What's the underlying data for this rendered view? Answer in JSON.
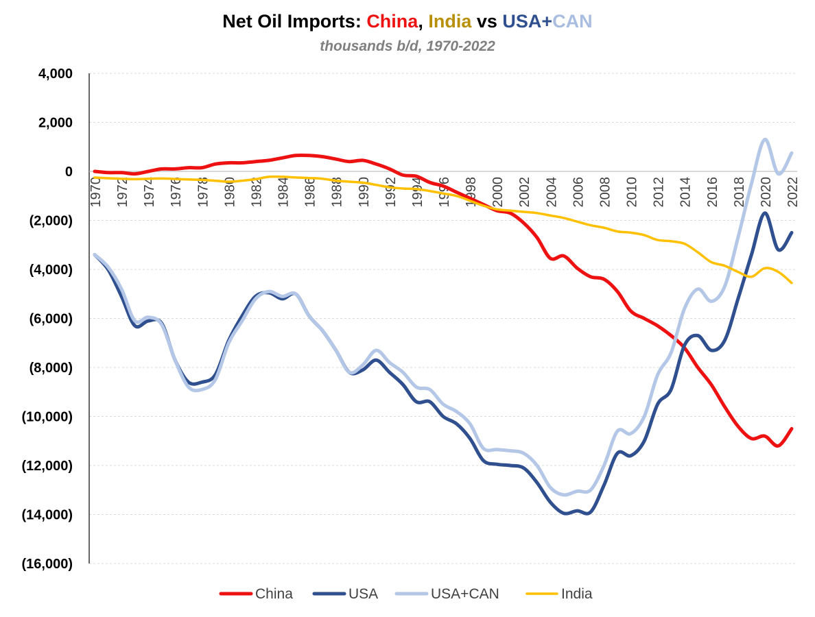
{
  "title_parts": [
    {
      "text": "Net Oil Imports: ",
      "color": "#000000"
    },
    {
      "text": "China",
      "color": "#ee1111"
    },
    {
      "text": ", ",
      "color": "#000000"
    },
    {
      "text": "India",
      "color": "#b8900a"
    },
    {
      "text": " vs ",
      "color": "#000000"
    },
    {
      "text": "USA+",
      "color": "#2f4f8f"
    },
    {
      "text": "CAN",
      "color": "#a9bde0"
    }
  ],
  "subtitle": "thousands b/d, 1970-2022",
  "chart_data": {
    "type": "line",
    "title": "Net Oil Imports: China, India vs USA+CAN",
    "subtitle": "thousands b/d, 1970-2022",
    "xlabel": "",
    "ylabel": "",
    "ylim": [
      -16000,
      4000
    ],
    "y_ticks": [
      4000,
      2000,
      0,
      -2000,
      -4000,
      -6000,
      -8000,
      -10000,
      -12000,
      -14000,
      -16000
    ],
    "y_tick_labels": [
      "4,000",
      "2,000",
      "0",
      "(2,000)",
      "(4,000)",
      "(6,000)",
      "(8,000)",
      "(10,000)",
      "(12,000)",
      "(14,000)",
      "(16,000)"
    ],
    "x": [
      1970,
      1971,
      1972,
      1973,
      1974,
      1975,
      1976,
      1977,
      1978,
      1979,
      1980,
      1981,
      1982,
      1983,
      1984,
      1985,
      1986,
      1987,
      1988,
      1989,
      1990,
      1991,
      1992,
      1993,
      1994,
      1995,
      1996,
      1997,
      1998,
      1999,
      2000,
      2001,
      2002,
      2003,
      2004,
      2005,
      2006,
      2007,
      2008,
      2009,
      2010,
      2011,
      2012,
      2013,
      2014,
      2015,
      2016,
      2017,
      2018,
      2019,
      2020,
      2021,
      2022
    ],
    "x_tick_labels": [
      "1970",
      "1972",
      "1974",
      "1976",
      "1978",
      "1980",
      "1982",
      "1984",
      "1986",
      "1988",
      "1990",
      "1992",
      "1994",
      "1996",
      "1998",
      "2000",
      "2002",
      "2004",
      "2006",
      "2008",
      "2010",
      "2012",
      "2014",
      "2016",
      "2018",
      "2020",
      "2022"
    ],
    "grid": true,
    "legend_position": "bottom",
    "series": [
      {
        "name": "China",
        "color": "#ee1111",
        "width": 5,
        "values": [
          0,
          -50,
          -50,
          -100,
          0,
          100,
          100,
          150,
          150,
          300,
          350,
          350,
          400,
          450,
          550,
          650,
          650,
          600,
          500,
          400,
          450,
          300,
          100,
          -150,
          -200,
          -450,
          -600,
          -850,
          -1100,
          -1350,
          -1600,
          -1700,
          -2100,
          -2700,
          -3550,
          -3450,
          -3950,
          -4300,
          -4400,
          -4900,
          -5700,
          -6000,
          -6300,
          -6700,
          -7200,
          -8000,
          -8700,
          -9600,
          -10400,
          -10900,
          -10800,
          -11200,
          -10500
        ]
      },
      {
        "name": "USA",
        "color": "#2f4f8f",
        "width": 5,
        "values": [
          -3400,
          -4000,
          -5100,
          -6300,
          -6100,
          -6200,
          -7700,
          -8600,
          -8600,
          -8300,
          -6900,
          -5900,
          -5100,
          -4950,
          -5200,
          -5000,
          -5900,
          -6500,
          -7300,
          -8200,
          -8100,
          -7700,
          -8200,
          -8700,
          -9400,
          -9400,
          -10000,
          -10300,
          -10900,
          -11800,
          -11950,
          -12000,
          -12100,
          -12700,
          -13500,
          -13950,
          -13850,
          -13900,
          -12800,
          -11500,
          -11600,
          -11000,
          -9500,
          -8900,
          -7100,
          -6700,
          -7300,
          -6900,
          -5200,
          -3400,
          -1700,
          -3200,
          -2500
        ]
      },
      {
        "name": "USA+CAN",
        "color": "#b4c7e7",
        "width": 5,
        "values": [
          -3400,
          -3900,
          -4800,
          -6100,
          -5950,
          -6250,
          -7700,
          -8800,
          -8900,
          -8500,
          -7000,
          -6100,
          -5200,
          -4900,
          -5100,
          -5000,
          -5900,
          -6500,
          -7300,
          -8200,
          -7900,
          -7300,
          -7800,
          -8200,
          -8800,
          -8900,
          -9500,
          -9800,
          -10300,
          -11300,
          -11350,
          -11400,
          -11500,
          -12000,
          -12900,
          -13200,
          -13050,
          -13000,
          -12000,
          -10600,
          -10700,
          -10000,
          -8300,
          -7400,
          -5600,
          -4800,
          -5300,
          -4700,
          -2700,
          -500,
          1300,
          -100,
          750
        ]
      },
      {
        "name": "India",
        "color": "#ffc000",
        "width": 3.5,
        "values": [
          -250,
          -280,
          -300,
          -320,
          -300,
          -290,
          -310,
          -330,
          -350,
          -380,
          -420,
          -380,
          -320,
          -220,
          -220,
          -250,
          -270,
          -300,
          -380,
          -420,
          -460,
          -550,
          -650,
          -700,
          -720,
          -800,
          -900,
          -1000,
          -1200,
          -1400,
          -1550,
          -1600,
          -1650,
          -1700,
          -1800,
          -1900,
          -2050,
          -2200,
          -2300,
          -2450,
          -2500,
          -2600,
          -2800,
          -2850,
          -2950,
          -3300,
          -3700,
          -3850,
          -4100,
          -4300,
          -3950,
          -4100,
          -4550
        ]
      }
    ]
  }
}
